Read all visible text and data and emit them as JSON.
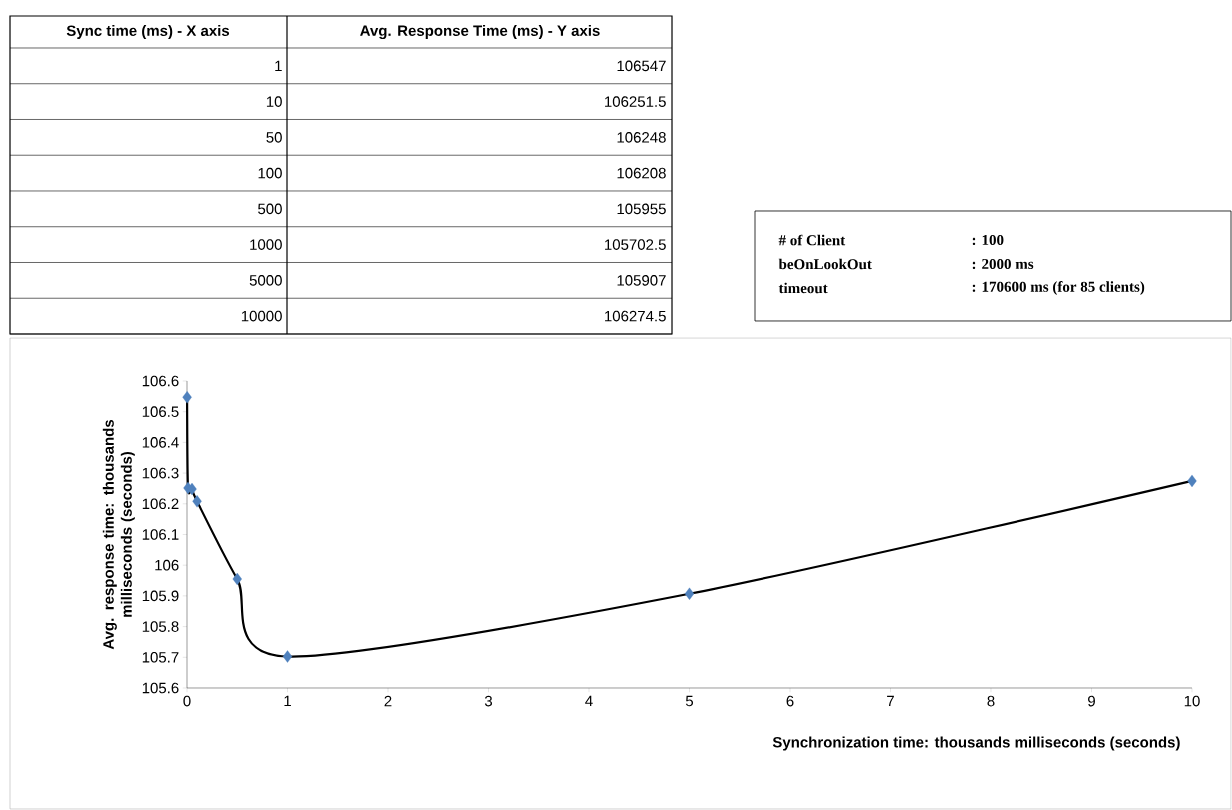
{
  "chart_data": {
    "type": "line",
    "xlabel": "Synchronization time: thousands milliseconds (seconds)",
    "ylabel": "Avg. response time: thousands milliseconds (seconds)",
    "x": [
      0.001,
      0.01,
      0.05,
      0.1,
      0.5,
      1,
      5,
      10
    ],
    "values": [
      106.547,
      106.2515,
      106.248,
      106.208,
      105.955,
      105.7025,
      105.907,
      106.2745
    ],
    "color": "#4f81bd",
    "marker": "diamond",
    "line_style": "solid",
    "grid": false,
    "xlim": [
      0,
      10
    ],
    "ylim": [
      105.6,
      106.6
    ],
    "xticks": [
      0,
      1,
      2,
      3,
      4,
      5,
      6,
      7,
      8,
      9,
      10
    ],
    "yticks": [
      105.6,
      105.7,
      105.8,
      105.9,
      106,
      106.1,
      106.2,
      106.3,
      106.4,
      106.5,
      106.6
    ],
    "annotations": [
      "Sync time (ms) - X axis",
      "Avg. Response Time (ms) - Y axis",
      "1",
      "10",
      "50",
      "100",
      "500",
      "1000",
      "5000",
      "10000",
      "106547",
      "106251.5",
      "106248",
      "106208",
      "105955",
      "105702.5",
      "105907",
      "106274.5",
      "# of Client",
      ": 100",
      "beOnLookOut",
      ": 2000 ms",
      "timeout",
      ": 170600 ms (for 85 clients)"
    ]
  }
}
